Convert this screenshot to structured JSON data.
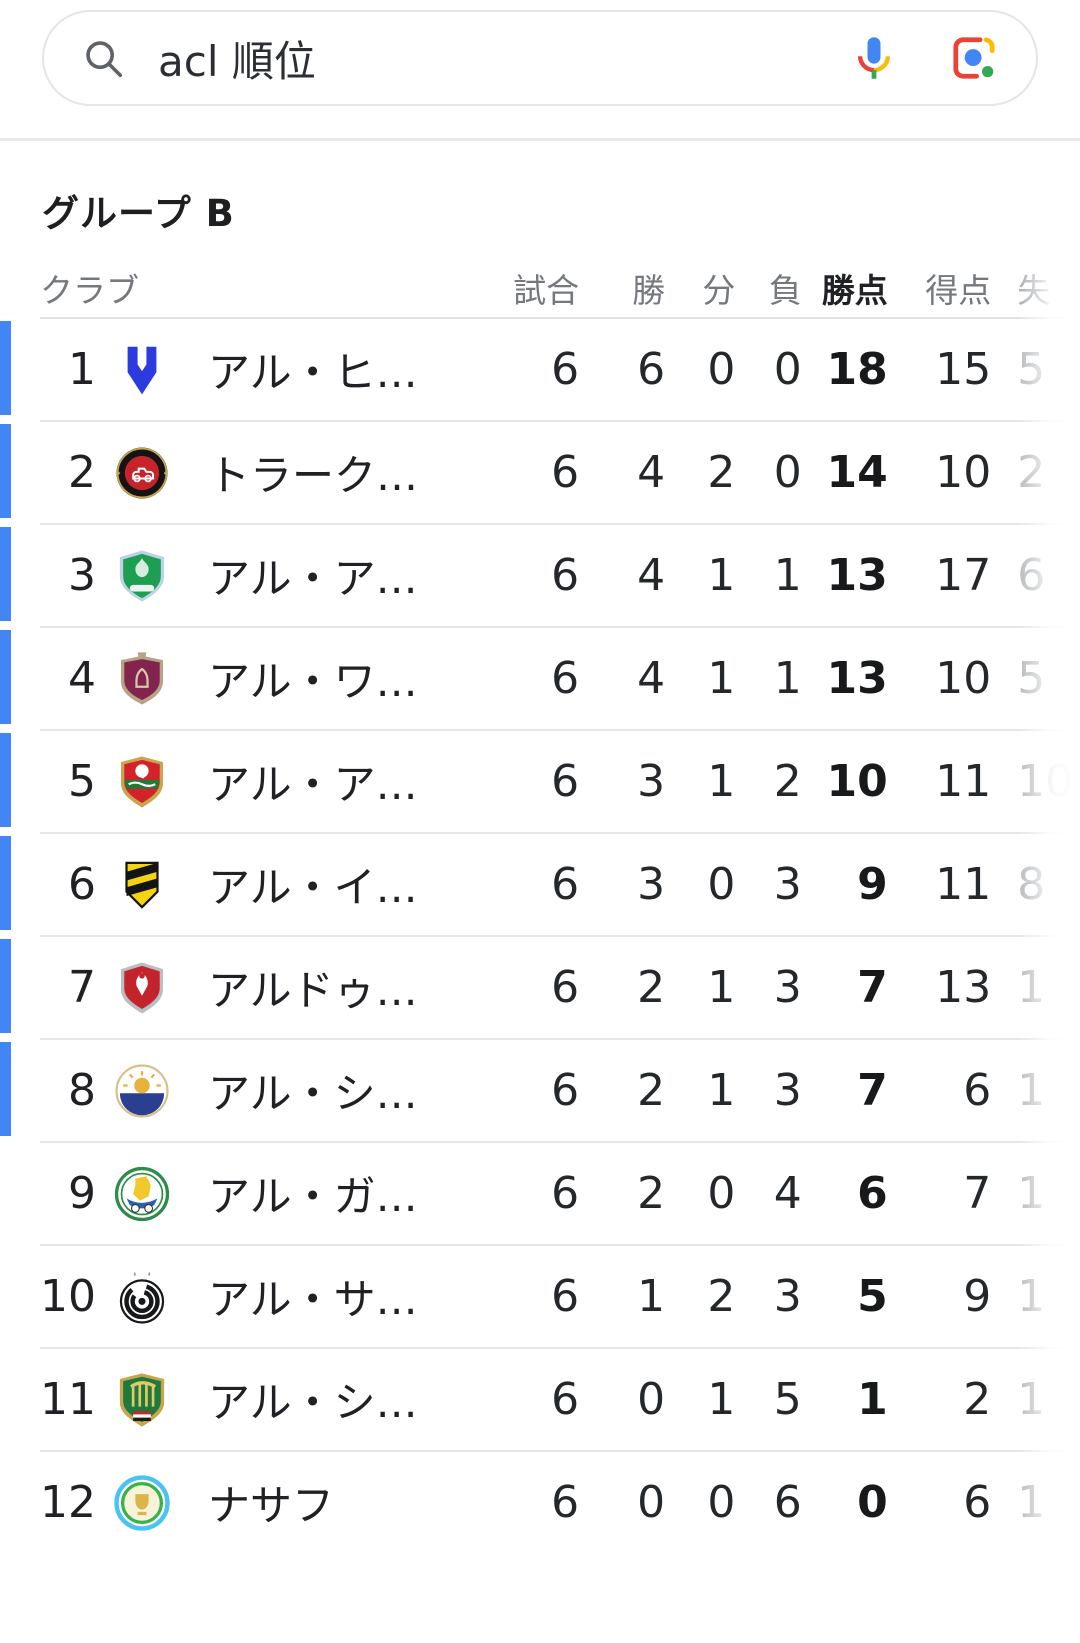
{
  "search": {
    "query": "acl 順位"
  },
  "section": {
    "title": "グループ B"
  },
  "table": {
    "club_header": "クラブ",
    "columns": [
      {
        "key": "played",
        "label": "試合"
      },
      {
        "key": "won",
        "label": "勝"
      },
      {
        "key": "drawn",
        "label": "分"
      },
      {
        "key": "lost",
        "label": "負"
      },
      {
        "key": "points",
        "label": "勝点",
        "emphasis": true
      },
      {
        "key": "gf",
        "label": "得点"
      },
      {
        "key": "ga",
        "label": "失",
        "faded": true
      }
    ],
    "rows": [
      {
        "rank": "1",
        "name": "アル・ヒ…",
        "logo": "al-hilal",
        "qualified": true,
        "played": "6",
        "won": "6",
        "drawn": "0",
        "lost": "0",
        "points": "18",
        "gf": "15",
        "ga": "5"
      },
      {
        "rank": "2",
        "name": "トラーク…",
        "logo": "tractor",
        "qualified": true,
        "played": "6",
        "won": "4",
        "drawn": "2",
        "lost": "0",
        "points": "14",
        "gf": "10",
        "ga": "2"
      },
      {
        "rank": "3",
        "name": "アル・ア…",
        "logo": "al-ahli",
        "qualified": true,
        "played": "6",
        "won": "4",
        "drawn": "1",
        "lost": "1",
        "points": "13",
        "gf": "17",
        "ga": "6"
      },
      {
        "rank": "4",
        "name": "アル・ワ…",
        "logo": "al-wahda",
        "qualified": true,
        "played": "6",
        "won": "4",
        "drawn": "1",
        "lost": "1",
        "points": "13",
        "gf": "10",
        "ga": "5"
      },
      {
        "rank": "5",
        "name": "アル・ア…",
        "logo": "shabab-al-ahli",
        "qualified": true,
        "played": "6",
        "won": "3",
        "drawn": "1",
        "lost": "2",
        "points": "10",
        "gf": "11",
        "ga": "10"
      },
      {
        "rank": "6",
        "name": "アル・イ…",
        "logo": "al-ittihad",
        "qualified": true,
        "played": "6",
        "won": "3",
        "drawn": "0",
        "lost": "3",
        "points": "9",
        "gf": "11",
        "ga": "8"
      },
      {
        "rank": "7",
        "name": "アルドゥ…",
        "logo": "al-duhail",
        "qualified": true,
        "played": "6",
        "won": "2",
        "drawn": "1",
        "lost": "3",
        "points": "7",
        "gf": "13",
        "ga": "1"
      },
      {
        "rank": "8",
        "name": "アル・シ…",
        "logo": "sharjah",
        "qualified": true,
        "played": "6",
        "won": "2",
        "drawn": "1",
        "lost": "3",
        "points": "7",
        "gf": "6",
        "ga": "1"
      },
      {
        "rank": "9",
        "name": "アル・ガ…",
        "logo": "al-gharafa",
        "qualified": false,
        "played": "6",
        "won": "2",
        "drawn": "0",
        "lost": "4",
        "points": "6",
        "gf": "7",
        "ga": "1"
      },
      {
        "rank": "10",
        "name": "アル・サ…",
        "logo": "al-sadd",
        "qualified": false,
        "played": "6",
        "won": "1",
        "drawn": "2",
        "lost": "3",
        "points": "5",
        "gf": "9",
        "ga": "1"
      },
      {
        "rank": "11",
        "name": "アル・シ…",
        "logo": "al-shorta",
        "qualified": false,
        "played": "6",
        "won": "0",
        "drawn": "1",
        "lost": "5",
        "points": "1",
        "gf": "2",
        "ga": "1"
      },
      {
        "rank": "12",
        "name": "ナサフ",
        "logo": "nasaf",
        "qualified": false,
        "played": "6",
        "won": "0",
        "drawn": "0",
        "lost": "6",
        "points": "0",
        "gf": "6",
        "ga": "1"
      }
    ]
  },
  "colors": {
    "qualification_bar": "#4285f4",
    "text_primary": "#202124",
    "text_secondary": "#70757a",
    "divider": "#dfe1e3",
    "mic_blue": "#4285f4",
    "mic_red": "#ea4335",
    "mic_yellow": "#fbbc05",
    "mic_green": "#34a853"
  },
  "icons": {
    "search": "search-icon",
    "microphone": "google-voice-mic-icon",
    "lens": "google-lens-icon"
  }
}
